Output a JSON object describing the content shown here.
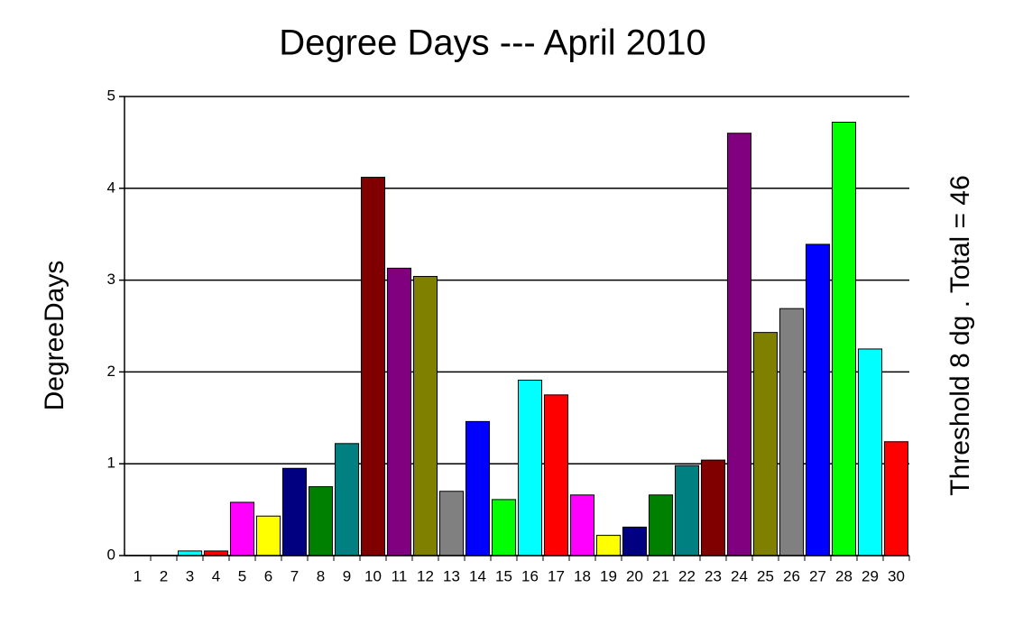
{
  "chart_data": {
    "type": "bar",
    "title": "Degree Days --- April 2010",
    "y_label": "DegreeDays",
    "right_label": "Threshold 8 dg . Total = 46",
    "categories": [
      "1",
      "2",
      "3",
      "4",
      "5",
      "6",
      "7",
      "8",
      "9",
      "10",
      "11",
      "12",
      "13",
      "14",
      "15",
      "16",
      "17",
      "18",
      "19",
      "20",
      "21",
      "22",
      "23",
      "24",
      "25",
      "26",
      "27",
      "28",
      "29",
      "30"
    ],
    "values": [
      0,
      0,
      0.05,
      0.05,
      0.58,
      0.43,
      0.95,
      0.75,
      1.22,
      4.12,
      3.13,
      3.04,
      0.7,
      1.46,
      0.61,
      1.91,
      1.75,
      0.66,
      0.22,
      0.31,
      0.66,
      0.98,
      1.04,
      4.6,
      2.43,
      2.69,
      3.39,
      4.72,
      2.25,
      1.24
    ],
    "colors": [
      "#0000ff",
      "#00ff00",
      "#00ffff",
      "#ff0000",
      "#ff00ff",
      "#ffff00",
      "#000080",
      "#008000",
      "#008080",
      "#800000",
      "#800080",
      "#808000",
      "#808080",
      "#0000ff",
      "#00ff00",
      "#00ffff",
      "#ff0000",
      "#ff00ff",
      "#ffff00",
      "#000080",
      "#008000",
      "#008080",
      "#800000",
      "#800080",
      "#808000",
      "#808080",
      "#0000ff",
      "#00ff00",
      "#00ffff",
      "#ff0000"
    ],
    "ylim": [
      0,
      5
    ],
    "yticks": [
      0,
      1,
      2,
      3,
      4,
      5
    ],
    "grid": true
  }
}
